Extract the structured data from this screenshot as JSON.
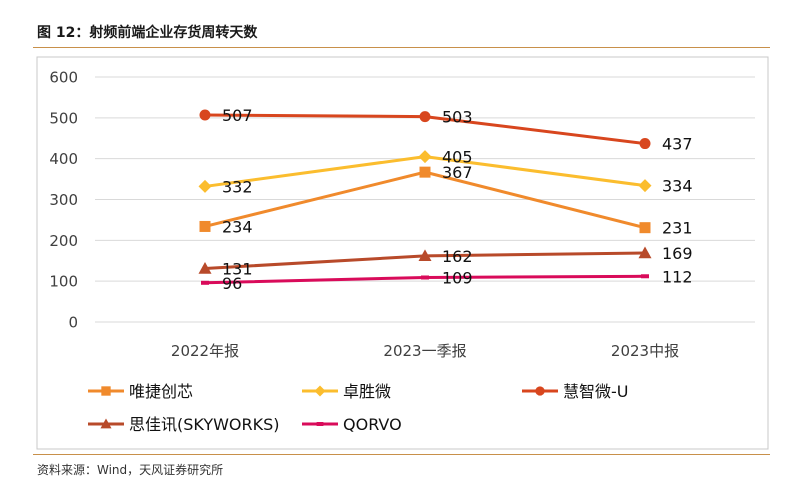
{
  "figure": {
    "title": "图 12：射频前端企业存货周转天数",
    "source": "资料来源：Wind，天风证券研究所"
  },
  "chart_data": {
    "type": "line",
    "categories": [
      "2022年报",
      "2023一季报",
      "2023中报"
    ],
    "ylim": [
      0,
      600
    ],
    "yticks": [
      0,
      100,
      200,
      300,
      400,
      500,
      600
    ],
    "grid": true,
    "legend_position": "bottom",
    "series": [
      {
        "name": "唯捷创芯",
        "values": [
          234,
          367,
          231
        ],
        "color": "#f08a2c",
        "marker": "square"
      },
      {
        "name": "卓胜微",
        "values": [
          332,
          405,
          334
        ],
        "color": "#fbbd2e",
        "marker": "diamond"
      },
      {
        "name": "慧智微-U",
        "values": [
          507,
          503,
          437
        ],
        "color": "#d8461e",
        "marker": "circle"
      },
      {
        "name": "思佳讯(SKYWORKS)",
        "values": [
          131,
          162,
          169
        ],
        "color": "#b84a2a",
        "marker": "triangle"
      },
      {
        "name": "QORVO",
        "values": [
          96,
          109,
          112
        ],
        "color": "#d90b5a",
        "marker": "dash"
      }
    ]
  }
}
